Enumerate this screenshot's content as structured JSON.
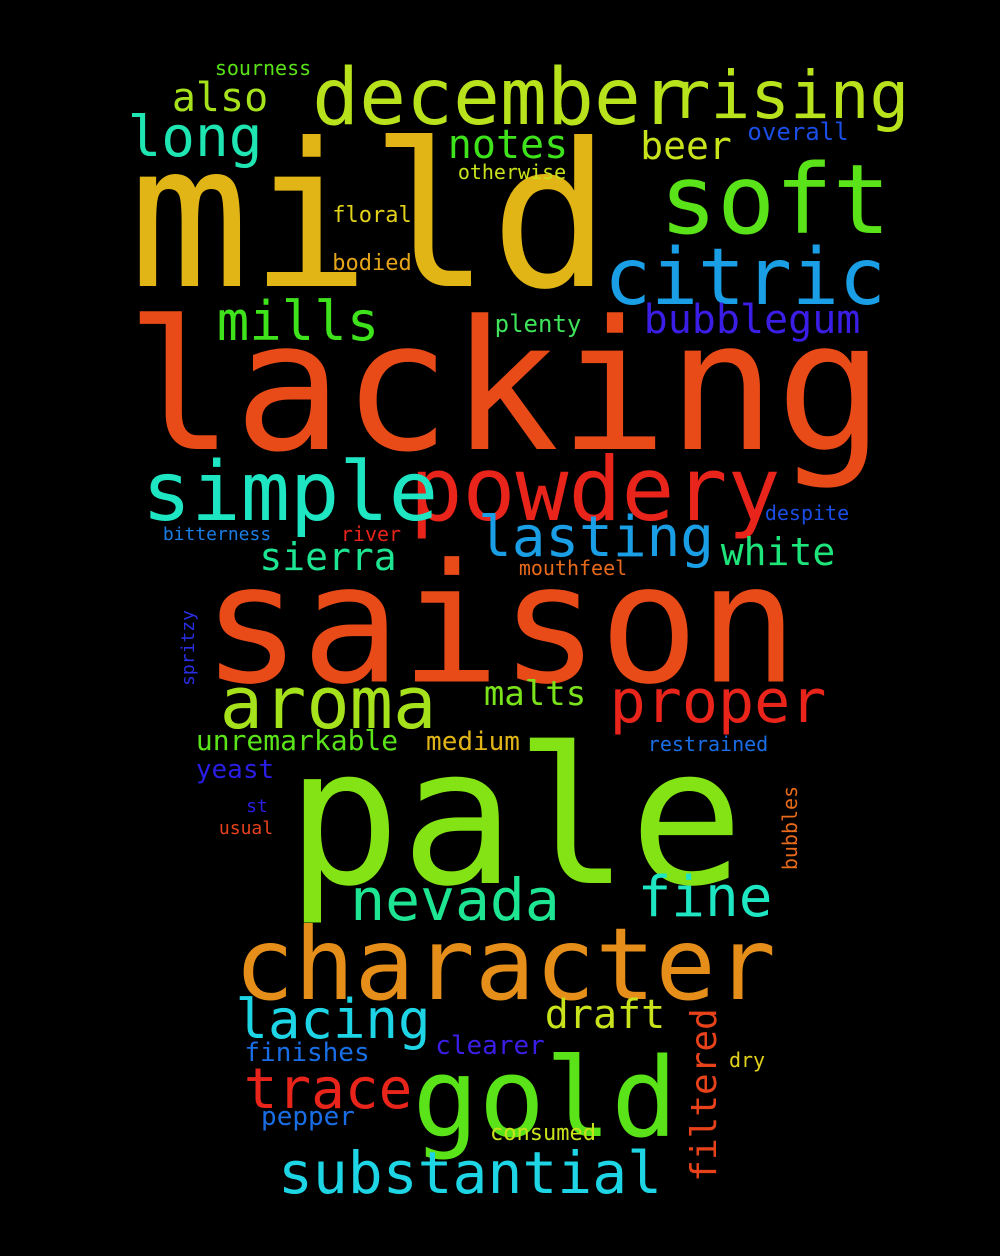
{
  "words": [
    {
      "text": "mild",
      "color": "#e2b516"
    },
    {
      "text": "lacking",
      "color": "#e84a18"
    },
    {
      "text": "saison",
      "color": "#e84a18"
    },
    {
      "text": "pale",
      "color": "#84e315"
    },
    {
      "text": "character",
      "color": "#e58e1a"
    },
    {
      "text": "gold",
      "color": "#5ae319"
    },
    {
      "text": "december",
      "color": "#b8e21b"
    },
    {
      "text": "rising",
      "color": "#b8e21b"
    },
    {
      "text": "soft",
      "color": "#5ae319"
    },
    {
      "text": "citric",
      "color": "#1a9ee5"
    },
    {
      "text": "powdery",
      "color": "#e8241b"
    },
    {
      "text": "simple",
      "color": "#1ee5c2"
    },
    {
      "text": "aroma",
      "color": "#a6e21b"
    },
    {
      "text": "proper",
      "color": "#e8241b"
    },
    {
      "text": "lasting",
      "color": "#1a9ee5"
    },
    {
      "text": "nevada",
      "color": "#1ee592"
    },
    {
      "text": "fine",
      "color": "#1ee5c2"
    },
    {
      "text": "substantial",
      "color": "#1ed5e5"
    },
    {
      "text": "trace",
      "color": "#e8241b"
    },
    {
      "text": "lacing",
      "color": "#1ed5e5"
    },
    {
      "text": "mills",
      "color": "#3ee31b"
    },
    {
      "text": "long",
      "color": "#1ee5b2"
    },
    {
      "text": "also",
      "color": "#a6e21b"
    },
    {
      "text": "notes",
      "color": "#3ee31b"
    },
    {
      "text": "beer",
      "color": "#c8e21b"
    },
    {
      "text": "bubblegum",
      "color": "#3a1ee5"
    },
    {
      "text": "sierra",
      "color": "#1ee592"
    },
    {
      "text": "white",
      "color": "#1ee57a"
    },
    {
      "text": "malts",
      "color": "#7ae31b"
    },
    {
      "text": "draft",
      "color": "#c8e21b"
    },
    {
      "text": "filtered",
      "color": "#e8421b"
    },
    {
      "text": "unremarkable",
      "color": "#5ae319"
    },
    {
      "text": "medium",
      "color": "#e2b516"
    },
    {
      "text": "yeast",
      "color": "#2a1ee5"
    },
    {
      "text": "finishes",
      "color": "#1a6ee5"
    },
    {
      "text": "clearer",
      "color": "#3a1ee5"
    },
    {
      "text": "pepper",
      "color": "#1a6ee5"
    },
    {
      "text": "consumed",
      "color": "#c8e21b"
    },
    {
      "text": "overall",
      "color": "#1a4ee5"
    },
    {
      "text": "otherwise",
      "color": "#c8e21b"
    },
    {
      "text": "floral",
      "color": "#e2d21b"
    },
    {
      "text": "bodied",
      "color": "#e5a51a"
    },
    {
      "text": "plenty",
      "color": "#3ee35a"
    },
    {
      "text": "sourness",
      "color": "#5ae319"
    },
    {
      "text": "despite",
      "color": "#1a4ee5"
    },
    {
      "text": "bitterness",
      "color": "#1a7ee5"
    },
    {
      "text": "river",
      "color": "#e8241b"
    },
    {
      "text": "mouthfeel",
      "color": "#e86a1b"
    },
    {
      "text": "spritzy",
      "color": "#2a2ee5"
    },
    {
      "text": "restrained",
      "color": "#1a6ee5"
    },
    {
      "text": "bubbles",
      "color": "#e86a1b"
    },
    {
      "text": "st",
      "color": "#2a1ee5"
    },
    {
      "text": "usual",
      "color": "#e8421b"
    },
    {
      "text": "dry",
      "color": "#e2d21b"
    }
  ]
}
